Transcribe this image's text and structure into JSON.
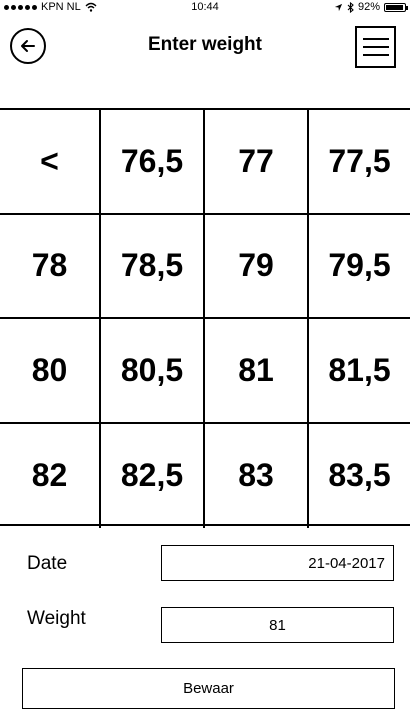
{
  "status_bar": {
    "carrier": "KPN NL",
    "time": "10:44",
    "battery": "92%",
    "battery_level": 0.92
  },
  "header": {
    "title": "Enter weight",
    "back_icon": "back-arrow-circle-icon",
    "menu_icon": "hamburger-menu-icon"
  },
  "keypad": {
    "keys": [
      "<",
      "76,5",
      "77",
      "77,5",
      "78",
      "78,5",
      "79",
      "79,5",
      "80",
      "80,5",
      "81",
      "81,5",
      "82",
      "82,5",
      "83",
      "83,5"
    ]
  },
  "form": {
    "date_label": "Date",
    "date_value": "21-04-2017",
    "weight_label": "Weight",
    "weight_value": "81",
    "save_label": "Bewaar"
  }
}
